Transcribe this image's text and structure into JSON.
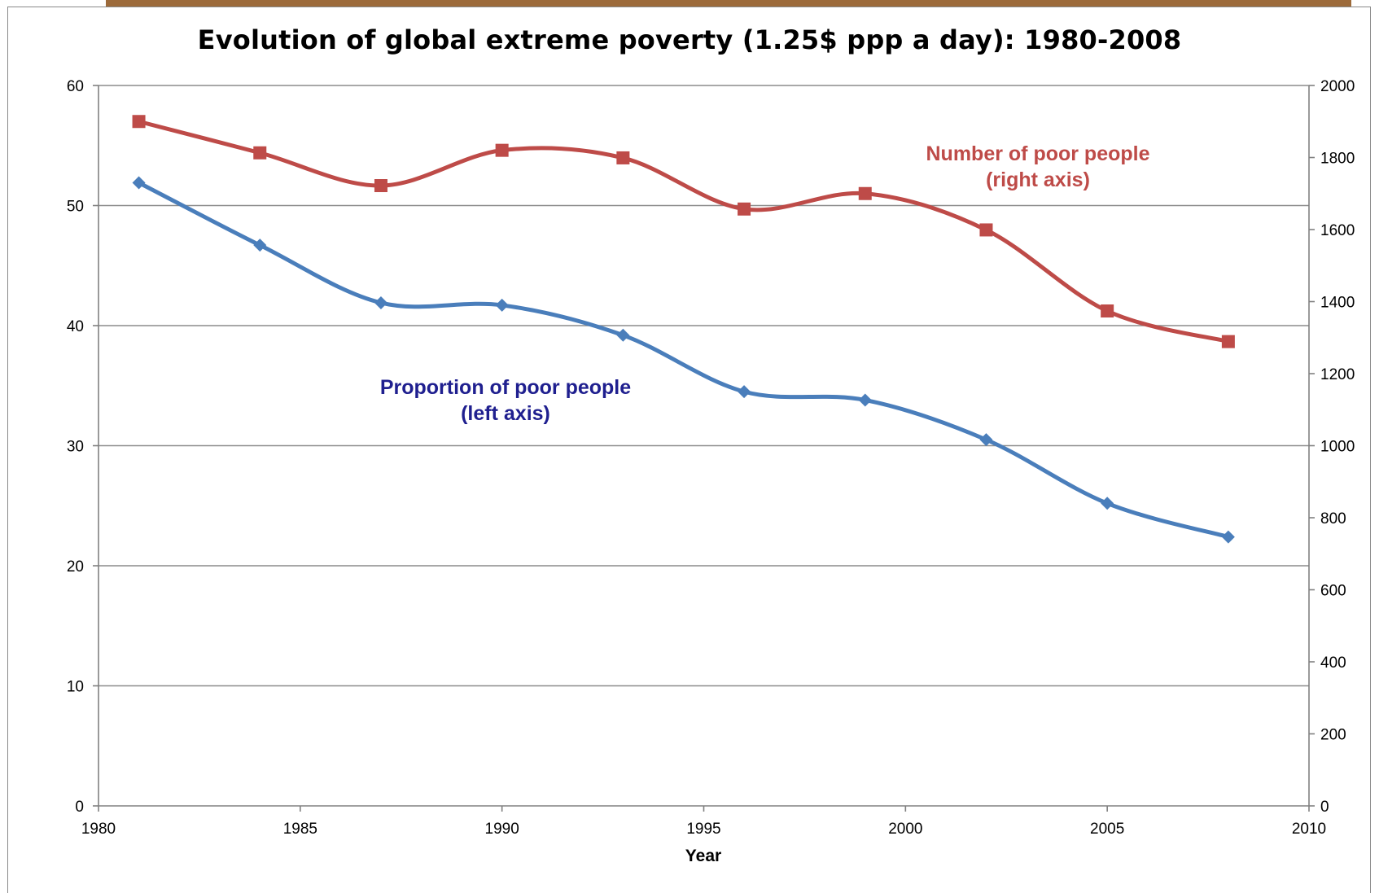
{
  "chart_data": {
    "type": "line",
    "title": "Evolution of global extreme poverty (1.25$ ppp a day): 1980-2008",
    "xlabel": "Year",
    "ylabel_left": "",
    "ylabel_right": "",
    "xlim": [
      1980,
      2010
    ],
    "ylim_left": [
      0,
      60
    ],
    "ylim_right": [
      0,
      2000
    ],
    "x_ticks": [
      "1980",
      "1985",
      "1990",
      "1995",
      "2000",
      "2005",
      "2010"
    ],
    "y_left_ticks": [
      "0",
      "10",
      "20",
      "30",
      "40",
      "50",
      "60"
    ],
    "y_right_ticks": [
      "0",
      "200",
      "400",
      "600",
      "800",
      "1000",
      "1200",
      "1400",
      "1600",
      "1800",
      "2000"
    ],
    "grid": "horizontal",
    "series": [
      {
        "name": "Proportion of poor  people",
        "axis": "left",
        "color": "#4a7ebb",
        "marker": "diamond",
        "x": [
          1981,
          1984,
          1987,
          1990,
          1993,
          1996,
          1999,
          2002,
          2005,
          2008
        ],
        "values": [
          51.9,
          46.7,
          41.9,
          41.7,
          39.2,
          34.5,
          33.8,
          30.5,
          25.2,
          22.4
        ]
      },
      {
        "name": "Number of poor people",
        "axis": "right",
        "color": "#be4b48",
        "marker": "square",
        "x": [
          1981,
          1984,
          1987,
          1990,
          1993,
          1996,
          1999,
          2002,
          2005,
          2008
        ],
        "values": [
          1900,
          1813,
          1722,
          1820,
          1799,
          1657,
          1700,
          1599,
          1374,
          1289
        ]
      }
    ],
    "annotations": [
      {
        "line1": "Proportion of poor  people",
        "line2": "(left axis)",
        "color": "#1f1f8f"
      },
      {
        "line1": "Number of poor people",
        "line2": "(right axis)",
        "color": "#be4b48"
      }
    ]
  }
}
